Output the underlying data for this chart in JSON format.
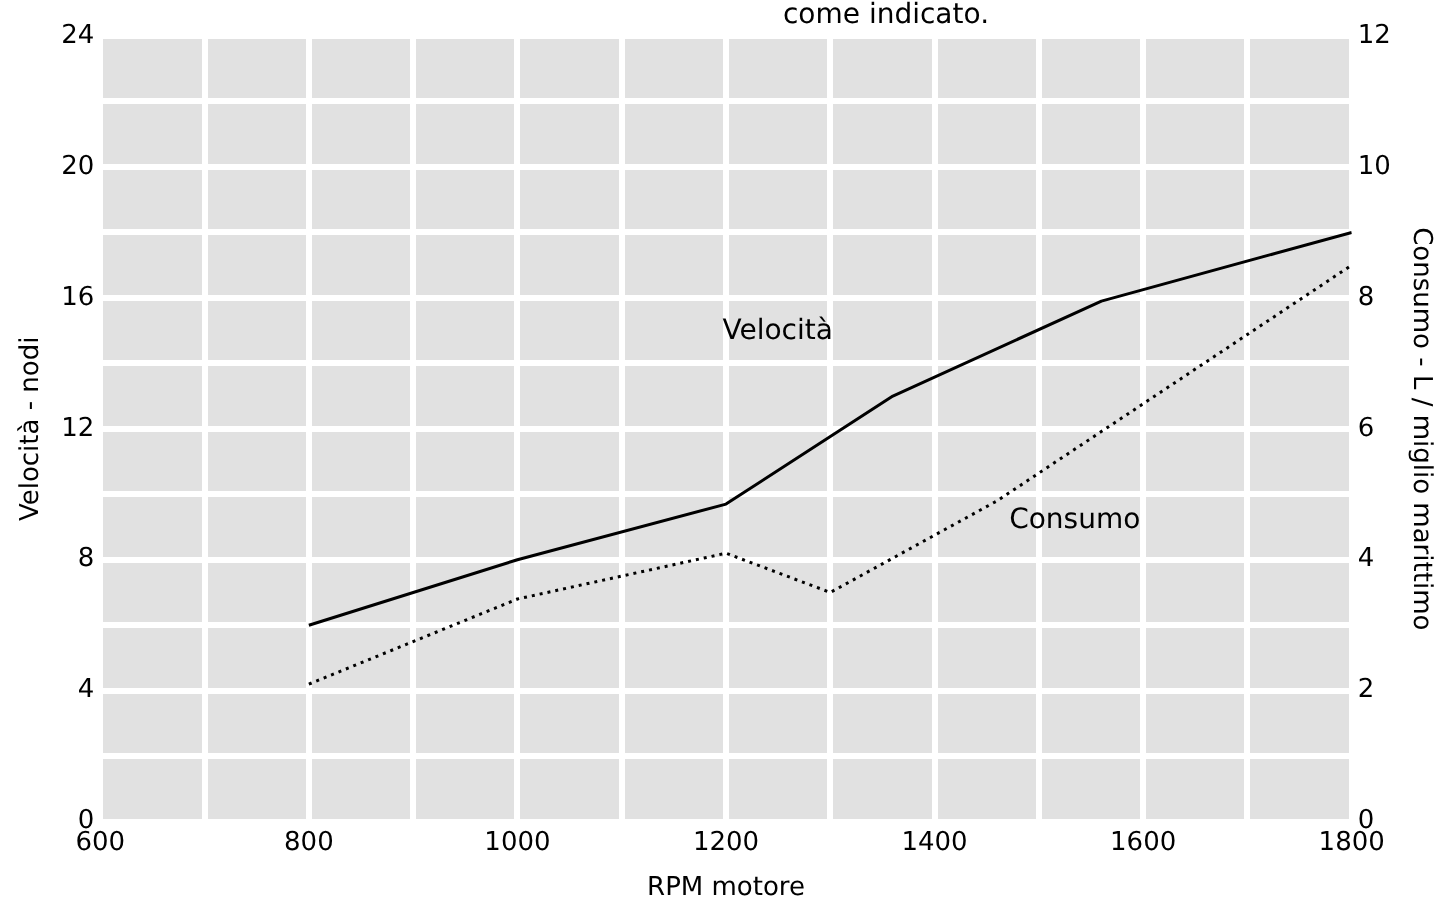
{
  "chart_data": {
    "type": "line",
    "xlabel": "RPM motore",
    "ylabel": "Velocità - nodi",
    "y2label": "Consumo - L / miglio marittimo",
    "annotations": [
      "come indicato."
    ],
    "xlim": [
      600,
      1800
    ],
    "xticks": [
      600,
      {
        "value": 700,
        "label": null
      },
      800,
      {
        "value": 900,
        "label": null
      },
      1000,
      {
        "value": 1100,
        "label": null
      },
      1200,
      {
        "value": 1300,
        "label": null
      },
      1400,
      {
        "value": 1500,
        "label": null
      },
      1600,
      {
        "value": 1700,
        "label": null
      },
      1800
    ],
    "ylim": [
      0,
      24
    ],
    "yticks": [
      0,
      {
        "value": 2,
        "label": null
      },
      4,
      {
        "value": 6,
        "label": null
      },
      8,
      {
        "value": 10,
        "label": null
      },
      12,
      {
        "value": 14,
        "label": null
      },
      16,
      {
        "value": 18,
        "label": null
      },
      20,
      {
        "value": 22,
        "label": null
      },
      24
    ],
    "y2lim": [
      0,
      12
    ],
    "y2ticks": [
      0,
      {
        "value": 1,
        "label": null
      },
      2,
      {
        "value": 3,
        "label": null
      },
      4,
      {
        "value": 5,
        "label": null
      },
      6,
      {
        "value": 7,
        "label": null
      },
      8,
      {
        "value": 9,
        "label": null
      },
      10,
      {
        "value": 11,
        "label": null
      },
      12
    ],
    "grid": true,
    "legend": false,
    "marker": "none",
    "series": [
      {
        "name": "Velocità",
        "color": "#000000",
        "line_style": "solid",
        "x": [
          800,
          1000,
          1200,
          1360,
          1560,
          1800
        ],
        "values": [
          6,
          8,
          9.7,
          13,
          15.9,
          18
        ]
      },
      {
        "name": "Consumo",
        "color": "#000000",
        "line_style": "dotted",
        "axis": "y2",
        "x": [
          800,
          1000,
          1200,
          1300,
          1460,
          1800
        ],
        "values": [
          2.1,
          3.4,
          4.1,
          3.5,
          4.9,
          8.5
        ]
      }
    ]
  }
}
